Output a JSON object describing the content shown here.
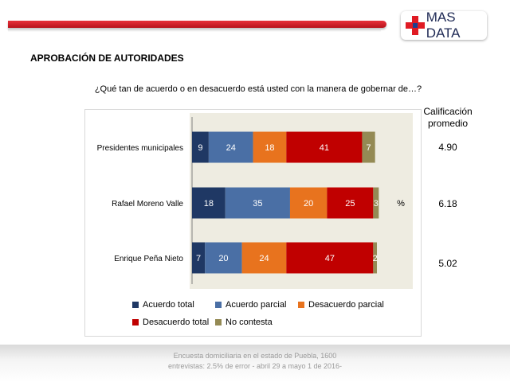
{
  "header": {
    "brand": "MAS DATA",
    "brand_colors": {
      "cross": "#e01b24",
      "center": "#1f3f8f",
      "bar": "#d11f28"
    }
  },
  "section_title": "APROBACIÓN DE AUTORIDADES",
  "question": "¿Qué tan de acuerdo o en desacuerdo está usted con la manera de gobernar de…?",
  "average": {
    "title_line1": "Calificación",
    "title_line2": "promedio",
    "values": [
      "4.90",
      "6.18",
      "5.02"
    ]
  },
  "unit_label": "%",
  "chart_data": {
    "type": "bar",
    "orientation": "horizontal",
    "stacked": true,
    "categories": [
      "Presidentes municipales",
      "Rafael Moreno Valle",
      "Enrique Peña Nieto"
    ],
    "series": [
      {
        "name": "Acuerdo total",
        "color": "#1f3864",
        "values": [
          9,
          18,
          7
        ]
      },
      {
        "name": "Acuerdo parcial",
        "color": "#4a6fa5",
        "values": [
          24,
          35,
          20
        ]
      },
      {
        "name": "Desacuerdo parcial",
        "color": "#e8731e",
        "values": [
          18,
          20,
          24
        ]
      },
      {
        "name": "Desacuerdo total",
        "color": "#c00000",
        "values": [
          41,
          25,
          47
        ]
      },
      {
        "name": "No contesta",
        "color": "#948a54",
        "values": [
          7,
          3,
          2
        ]
      }
    ],
    "xlim": [
      0,
      100
    ],
    "grid": false,
    "legend": "bottom"
  },
  "footer": {
    "line1": "Encuesta domiciliaria en el estado de Puebla, 1600",
    "line2": "entrevistas: 2.5% de error - abril 29 a mayo 1 de 2016-"
  }
}
